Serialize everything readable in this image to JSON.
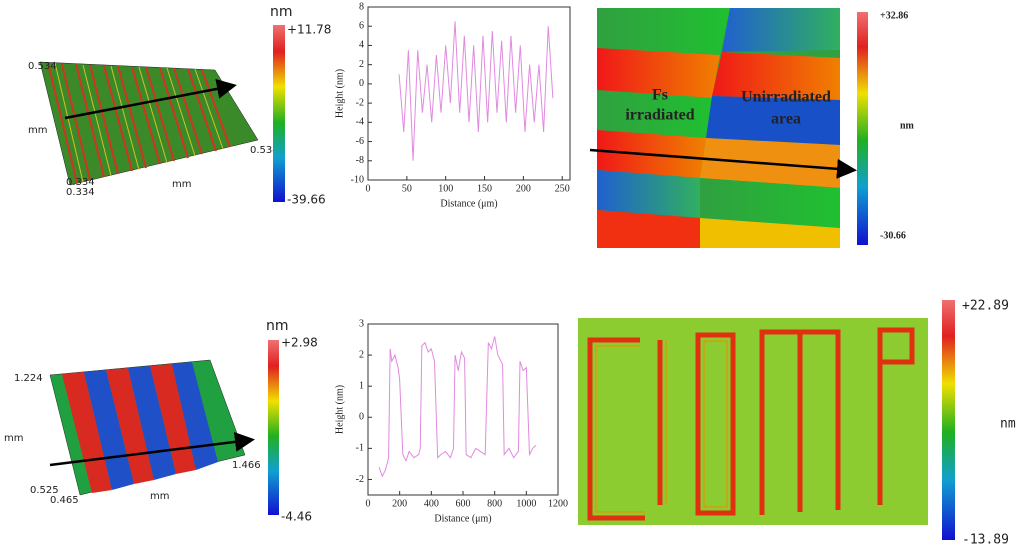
{
  "chart_data": [
    {
      "type": "line",
      "x_label": "Distance (μm)",
      "y_label": "Height (nm)",
      "color": "#e08ae0",
      "x": [
        40,
        46,
        52,
        58,
        64,
        70,
        76,
        82,
        88,
        94,
        100,
        106,
        112,
        118,
        124,
        130,
        136,
        142,
        148,
        154,
        160,
        166,
        172,
        178,
        184,
        190,
        196,
        202,
        208,
        214,
        220,
        226,
        232,
        238
      ],
      "values": [
        1,
        -5,
        3.5,
        -8,
        3.5,
        -3,
        2,
        -4,
        3,
        -3,
        4,
        -2,
        6.5,
        -3,
        5,
        -4,
        4,
        -5,
        5,
        -4,
        5.5,
        -3,
        4.5,
        -4,
        5,
        -3,
        4,
        -5,
        2,
        -4,
        2,
        -5,
        6,
        -1.5
      ],
      "xlim": [
        0,
        260
      ],
      "xticks": [
        0,
        50,
        100,
        150,
        200,
        250
      ],
      "ylim": [
        -10,
        8
      ],
      "yticks": [
        -10,
        -8,
        -6,
        -4,
        -2,
        0,
        2,
        4,
        6,
        8
      ]
    },
    {
      "type": "line",
      "x_label": "Distance (μm)",
      "y_label": "Height (nm)",
      "color": "#e08ae0",
      "x": [
        70,
        90,
        110,
        130,
        140,
        150,
        170,
        190,
        200,
        220,
        240,
        260,
        290,
        320,
        330,
        340,
        360,
        380,
        400,
        420,
        440,
        460,
        490,
        520,
        540,
        550,
        570,
        590,
        610,
        620,
        650,
        680,
        710,
        740,
        760,
        780,
        800,
        820,
        850,
        860,
        890,
        920,
        950,
        960,
        980,
        1000,
        1020,
        1040,
        1060
      ],
      "values": [
        -1.6,
        -1.9,
        -1.7,
        -1.3,
        2.2,
        1.8,
        2.0,
        1.6,
        1.2,
        -1.2,
        -1.4,
        -1.1,
        -1.3,
        -1.2,
        -1.0,
        2.3,
        2.4,
        2.1,
        2.2,
        1.8,
        -1.3,
        -1.2,
        -1.1,
        -1.3,
        -1.0,
        2.0,
        1.5,
        2.1,
        1.9,
        -1.2,
        -1.3,
        -1.0,
        -1.1,
        -1.2,
        2.4,
        2.2,
        2.6,
        2.0,
        1.7,
        -1.2,
        -1.0,
        -1.3,
        -1.1,
        1.8,
        1.5,
        1.6,
        -1.2,
        -1.0,
        -0.9
      ],
      "xlim": [
        0,
        1200
      ],
      "xticks": [
        0,
        200,
        400,
        600,
        800,
        1000,
        1200
      ],
      "ylim": [
        -2.5,
        3
      ],
      "yticks": [
        -2,
        -1,
        0,
        1,
        2,
        3
      ]
    }
  ],
  "panels": {
    "top_3d": {
      "unit": "nm",
      "max": "+11.78",
      "min": "-39.66",
      "y_extent": "0.534",
      "y_unit": "mm",
      "x_extent": "0.534",
      "origin_y": "0.334",
      "origin_x": "0.334",
      "x_unit": "mm"
    },
    "top_map": {
      "left_1": "Fs",
      "left_2": "irradiated",
      "right_1": "Unirradiated",
      "right_2": "area",
      "max": "+32.86",
      "unit": "nm",
      "min": "-30.66"
    },
    "bottom_3d": {
      "unit": "nm",
      "max": "+2.98",
      "min": "-4.46",
      "y_extent": "1.224",
      "y_unit": "mm",
      "x_extent": "1.466",
      "origin_y": "0.525",
      "origin_x": "0.465",
      "x_unit": "mm"
    },
    "bottom_map": {
      "max": "+22.89",
      "unit": "nm",
      "min": "-13.89"
    }
  }
}
